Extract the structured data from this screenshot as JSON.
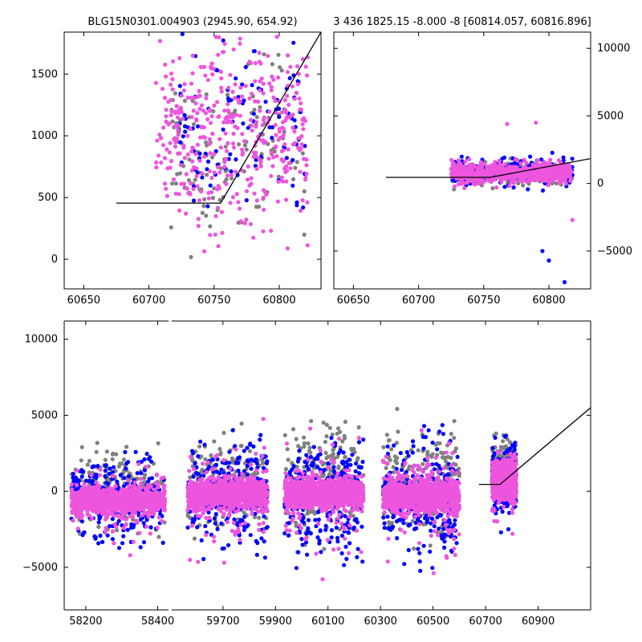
{
  "colors": {
    "grey": "#808080",
    "blue": "#0000ff",
    "pink": "#ee55dd",
    "model": "#000000",
    "axes": "#000000"
  },
  "chart_data": [
    {
      "type": "scatter",
      "title": "BLG15N0301.004903 (2945.90, 654.92)",
      "xlim": [
        60635,
        60832
      ],
      "ylim": [
        -240,
        1840
      ],
      "xticks": [
        60650,
        60700,
        60750,
        60800
      ],
      "yticks": [
        0,
        500,
        1000,
        1500
      ],
      "y_tick_side": "left",
      "grid": false,
      "point_cloud": [
        {
          "color": "grey",
          "x_range": [
            60715,
            60820
          ],
          "y_center": 900,
          "y_spread": 700,
          "count": 120,
          "seed": 11
        },
        {
          "color": "blue",
          "x_range": [
            60720,
            60820
          ],
          "y_center": 1150,
          "y_spread": 650,
          "count": 110,
          "seed": 23
        },
        {
          "color": "pink",
          "x_range": [
            60705,
            60822
          ],
          "y_center": 1000,
          "y_spread": 750,
          "count": 420,
          "seed": 37
        }
      ],
      "model": {
        "x": [
          60675,
          60755,
          60832
        ],
        "y": [
          455,
          455,
          1840
        ]
      }
    },
    {
      "type": "scatter",
      "title": "3 436 1825.15 -8.000 -8 [60814.057, 60816.896]",
      "xlim": [
        60635,
        60832
      ],
      "ylim": [
        -7800,
        11200
      ],
      "xticks": [
        60650,
        60700,
        60750,
        60800
      ],
      "yticks": [
        -5000,
        0,
        5000,
        10000
      ],
      "y_tick_side": "right",
      "grid": false,
      "point_cloud": [
        {
          "color": "grey",
          "x_range": [
            60725,
            60815
          ],
          "y_center": 700,
          "y_spread": 900,
          "count": 180,
          "seed": 41
        },
        {
          "color": "blue",
          "x_range": [
            60725,
            60818
          ],
          "y_center": 900,
          "y_spread": 1000,
          "count": 200,
          "seed": 53
        },
        {
          "color": "pink",
          "x_range": [
            60725,
            60817
          ],
          "y_center": 800,
          "y_spread": 700,
          "count": 600,
          "seed": 67
        }
      ],
      "outliers": [
        {
          "color": "blue",
          "x": 60795,
          "y": -5000
        },
        {
          "color": "blue",
          "x": 60812,
          "y": -7300
        },
        {
          "color": "blue",
          "x": 60800,
          "y": -5700
        },
        {
          "color": "pink",
          "x": 60768,
          "y": 4400
        },
        {
          "color": "pink",
          "x": 60790,
          "y": 4500
        },
        {
          "color": "pink",
          "x": 60818,
          "y": -2700
        }
      ],
      "model": {
        "x": [
          60675,
          60755,
          60832
        ],
        "y": [
          455,
          455,
          1840
        ]
      }
    },
    {
      "type": "scatter",
      "title": "",
      "ylim": [
        -7800,
        11200
      ],
      "yticks": [
        -5000,
        0,
        5000,
        10000
      ],
      "y_tick_side": "left",
      "grid": false,
      "segments": [
        {
          "xlim": [
            58140,
            58430
          ],
          "xticks": [
            58200,
            58400
          ],
          "seasons": [
            {
              "x_range": [
                58160,
                58420
              ],
              "y_base": -600,
              "y_core": 500,
              "y_spread": 2400
            }
          ]
        },
        {
          "xlim": [
            59505,
            61100
          ],
          "xticks": [
            59700,
            59900,
            60100,
            60300,
            60500,
            60700,
            60900
          ],
          "seasons": [
            {
              "x_range": [
                59565,
                59870
              ],
              "y_base": -200,
              "y_core": 600,
              "y_spread": 3000
            },
            {
              "x_range": [
                59935,
                60235
              ],
              "y_base": -150,
              "y_core": 600,
              "y_spread": 3500
            },
            {
              "x_range": [
                60310,
                60600
              ],
              "y_base": -300,
              "y_core": 650,
              "y_spread": 3500
            },
            {
              "x_range": [
                60725,
                60817
              ],
              "y_base": 700,
              "y_core": 700,
              "y_spread": 1800
            }
          ]
        }
      ],
      "model": {
        "x": [
          60675,
          60755,
          61100
        ],
        "y": [
          455,
          455,
          5500
        ]
      }
    }
  ]
}
